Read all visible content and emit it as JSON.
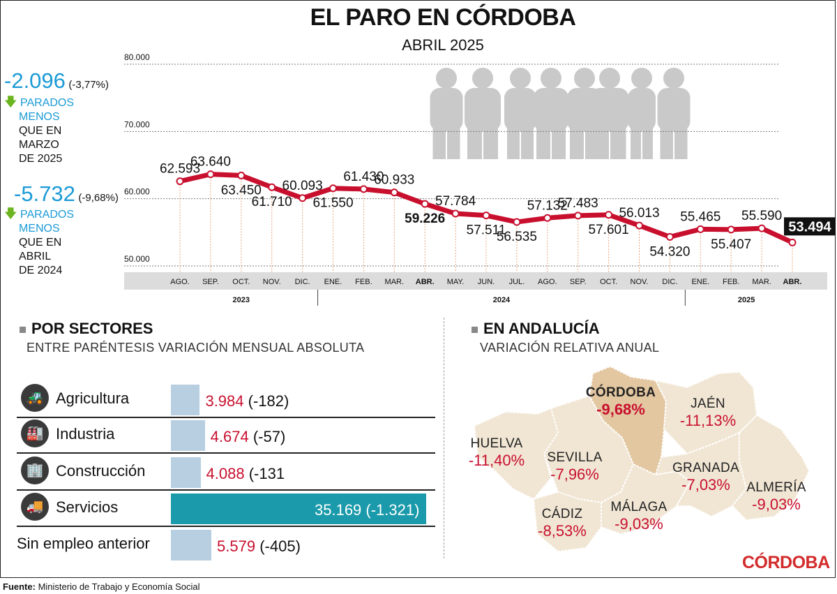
{
  "header": {
    "title": "EL PARO EN CÓRDOBA",
    "subtitle": "ABRIL 2025"
  },
  "kpis": [
    {
      "value": "-2.096",
      "pct": "(-3,77%)",
      "line1": "PARADOS",
      "line2": "MENOS",
      "line3": "QUE EN",
      "line4": "MARZO",
      "line5": "DE 2025"
    },
    {
      "value": "-5.732",
      "pct": "(-9,68%)",
      "line1": "PARADOS",
      "line2": "MENOS",
      "line3": "QUE EN",
      "line4": "ABRIL",
      "line5": "DE 2024"
    }
  ],
  "chart_data": [
    {
      "type": "line",
      "title": "EL PARO EN CÓRDOBA",
      "subtitle": "ABRIL 2025",
      "ylim": [
        50000,
        80000
      ],
      "yticks": [
        50000,
        60000,
        70000,
        80000
      ],
      "ytick_labels": [
        "50.000",
        "60.000",
        "70.000",
        "80.000"
      ],
      "grid": true,
      "categories": [
        "AGO.",
        "SEP.",
        "OCT.",
        "NOV.",
        "DIC.",
        "ENE.",
        "FEB.",
        "MAR.",
        "ABR.",
        "MAY.",
        "JUN.",
        "JUL.",
        "AGO.",
        "SEP.",
        "OCT.",
        "NOV.",
        "DIC.",
        "ENE.",
        "FEB.",
        "MAR.",
        "ABR."
      ],
      "years": [
        {
          "label": "2023",
          "from": 0,
          "to": 4
        },
        {
          "label": "2024",
          "from": 5,
          "to": 16
        },
        {
          "label": "2025",
          "from": 17,
          "to": 20
        }
      ],
      "values": [
        62593,
        63640,
        63450,
        61710,
        60093,
        61550,
        61430,
        60933,
        59226,
        57784,
        57511,
        56535,
        57132,
        57483,
        57601,
        56013,
        54320,
        55465,
        55407,
        55590,
        53494
      ],
      "value_labels": [
        "62.593",
        "63.640",
        "63.450",
        "61.710",
        "60.093",
        "61.550",
        "61.430",
        "60.933",
        "59.226",
        "57.784",
        "57.511",
        "56.535",
        "57.132",
        "57.483",
        "57.601",
        "56.013",
        "54.320",
        "55.465",
        "55.407",
        "55.590",
        "53.494"
      ],
      "highlighted": [
        8,
        20
      ],
      "line_color": "#c8102e"
    },
    {
      "type": "bar",
      "title": "POR SECTORES",
      "subtitle": "ENTRE PARÉNTESIS VARIACIÓN MENSUAL ABSOLUTA",
      "categories": [
        "Agricultura",
        "Industria",
        "Construcción",
        "Servicios",
        "Sin empleo anterior"
      ],
      "values": [
        3984,
        4674,
        4088,
        35169,
        5579
      ],
      "value_labels": [
        "3.984",
        "4.674",
        "4.088",
        "35.169",
        "5.579"
      ],
      "diffs": [
        "(-182)",
        "(-57)",
        "(-131",
        "(-1.321)",
        "(-405)"
      ],
      "icons": [
        "tractor-icon",
        "factory-icon",
        "buildings-icon",
        "truck-icon",
        ""
      ],
      "highlight_color": "#1a9aaa",
      "bar_color": "#b7cfe0"
    }
  ],
  "andalucia": {
    "title": "EN ANDALUCÍA",
    "subtitle": "VARIACIÓN RELATIVA ANUAL",
    "regions": [
      {
        "name": "CÓRDOBA",
        "value": "-9,68%",
        "highlight": true
      },
      {
        "name": "JAÉN",
        "value": "-11,13%"
      },
      {
        "name": "HUELVA",
        "value": "-11,40%"
      },
      {
        "name": "SEVILLA",
        "value": "-7,96%"
      },
      {
        "name": "GRANADA",
        "value": "-7,03%"
      },
      {
        "name": "ALMERÍA",
        "value": "-9,03%"
      },
      {
        "name": "MÁLAGA",
        "value": "-9,03%"
      },
      {
        "name": "CÁDIZ",
        "value": "-8,53%"
      }
    ],
    "map_color": "#f1e6d4",
    "highlight_color": "#e3c7a1"
  },
  "footer": {
    "source_label": "Fuente:",
    "source_text": "Ministerio de Trabajo y Economía Social",
    "brand": "CÓRDOBA"
  }
}
